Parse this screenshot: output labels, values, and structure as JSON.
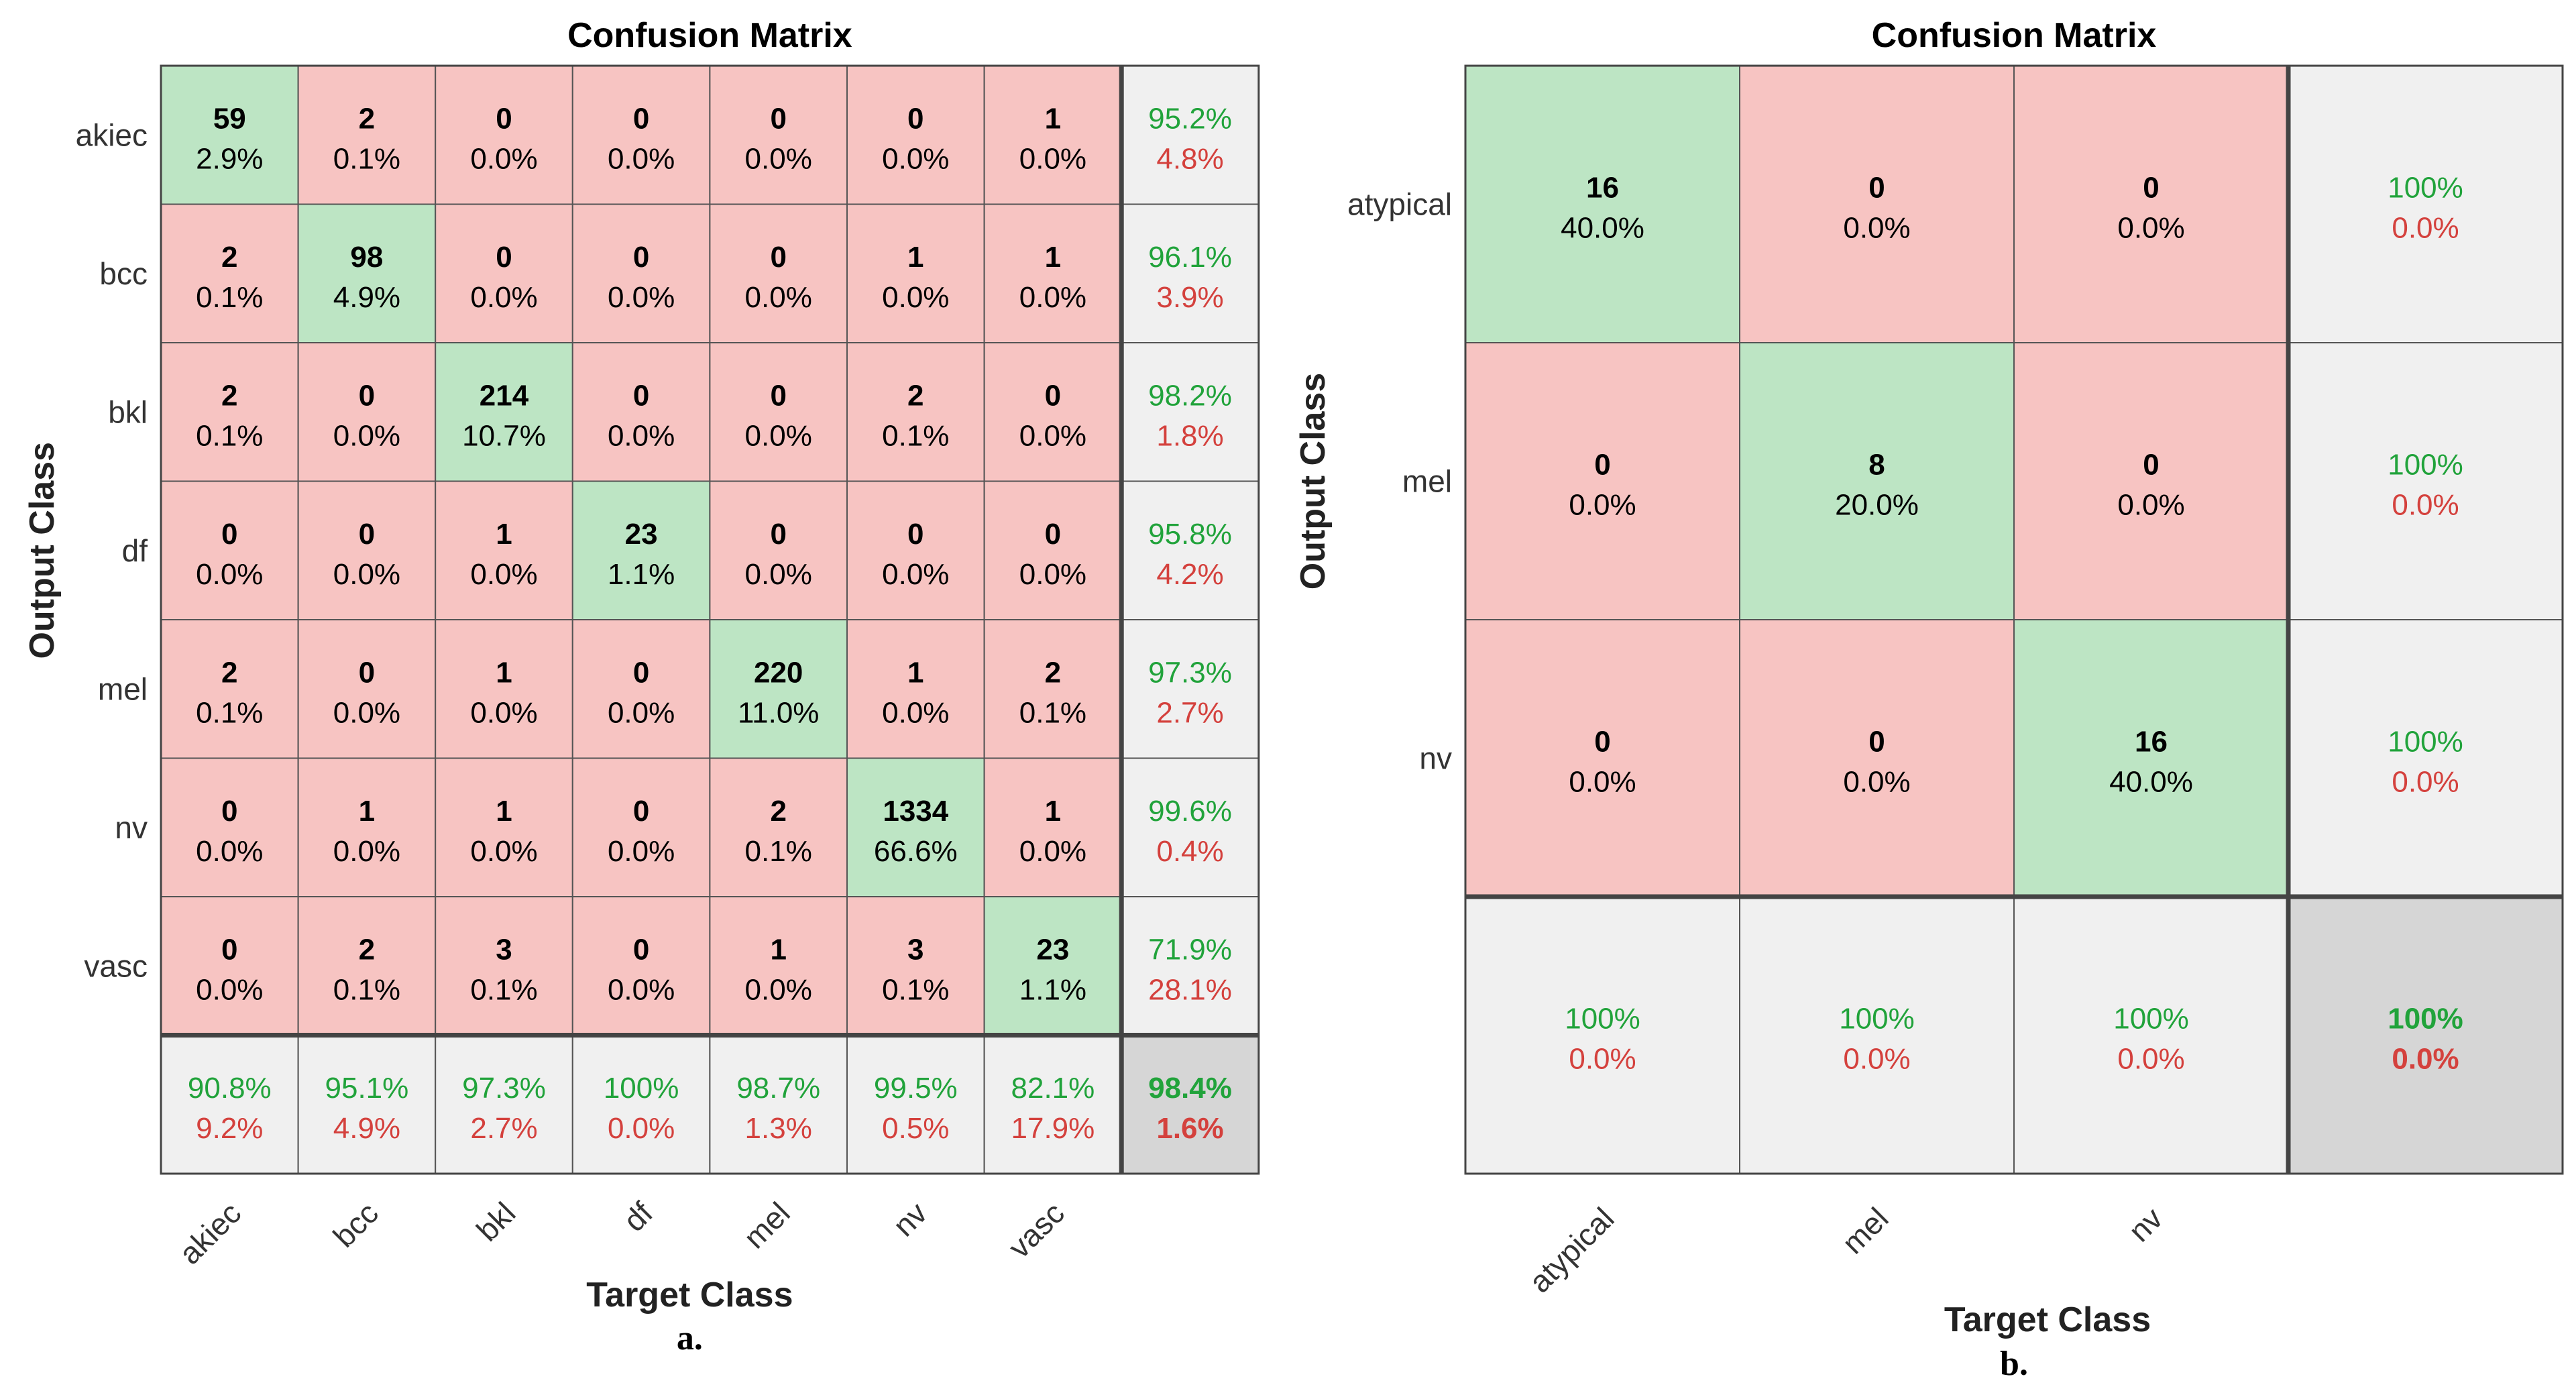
{
  "chart_data": [
    {
      "type": "heatmap",
      "title": "Confusion Matrix",
      "xlabel": "Target Class",
      "ylabel": "Output Class",
      "caption": "a.",
      "classes": [
        "akiec",
        "bcc",
        "bkl",
        "df",
        "mel",
        "nv",
        "vasc"
      ],
      "matrix": [
        [
          59,
          2,
          0,
          0,
          0,
          0,
          1
        ],
        [
          2,
          98,
          0,
          0,
          0,
          1,
          1
        ],
        [
          2,
          0,
          214,
          0,
          0,
          2,
          0
        ],
        [
          0,
          0,
          1,
          23,
          0,
          0,
          0
        ],
        [
          2,
          0,
          1,
          0,
          220,
          1,
          2
        ],
        [
          0,
          1,
          1,
          0,
          2,
          1334,
          1
        ],
        [
          0,
          2,
          3,
          0,
          1,
          3,
          23
        ]
      ],
      "cell_percent": [
        [
          "2.9%",
          "0.1%",
          "0.0%",
          "0.0%",
          "0.0%",
          "0.0%",
          "0.0%"
        ],
        [
          "0.1%",
          "4.9%",
          "0.0%",
          "0.0%",
          "0.0%",
          "0.0%",
          "0.0%"
        ],
        [
          "0.1%",
          "0.0%",
          "10.7%",
          "0.0%",
          "0.0%",
          "0.1%",
          "0.0%"
        ],
        [
          "0.0%",
          "0.0%",
          "0.0%",
          "1.1%",
          "0.0%",
          "0.0%",
          "0.0%"
        ],
        [
          "0.1%",
          "0.0%",
          "0.0%",
          "0.0%",
          "11.0%",
          "0.0%",
          "0.1%"
        ],
        [
          "0.0%",
          "0.0%",
          "0.0%",
          "0.0%",
          "0.1%",
          "66.6%",
          "0.0%"
        ],
        [
          "0.0%",
          "0.1%",
          "0.1%",
          "0.0%",
          "0.0%",
          "0.1%",
          "1.1%"
        ]
      ],
      "row_summary": [
        [
          "95.2%",
          "4.8%"
        ],
        [
          "96.1%",
          "3.9%"
        ],
        [
          "98.2%",
          "1.8%"
        ],
        [
          "95.8%",
          "4.2%"
        ],
        [
          "97.3%",
          "2.7%"
        ],
        [
          "99.6%",
          "0.4%"
        ],
        [
          "71.9%",
          "28.1%"
        ]
      ],
      "col_summary": [
        [
          "90.8%",
          "9.2%"
        ],
        [
          "95.1%",
          "4.9%"
        ],
        [
          "97.3%",
          "2.7%"
        ],
        [
          "100%",
          "0.0%"
        ],
        [
          "98.7%",
          "1.3%"
        ],
        [
          "99.5%",
          "0.5%"
        ],
        [
          "82.1%",
          "17.9%"
        ]
      ],
      "overall": [
        "98.4%",
        "1.6%"
      ]
    },
    {
      "type": "heatmap",
      "title": "Confusion Matrix",
      "xlabel": "Target Class",
      "ylabel": "Output Class",
      "caption": "b.",
      "classes": [
        "atypical",
        "mel",
        "nv"
      ],
      "matrix": [
        [
          16,
          0,
          0
        ],
        [
          0,
          8,
          0
        ],
        [
          0,
          0,
          16
        ]
      ],
      "cell_percent": [
        [
          "40.0%",
          "0.0%",
          "0.0%"
        ],
        [
          "0.0%",
          "20.0%",
          "0.0%"
        ],
        [
          "0.0%",
          "0.0%",
          "40.0%"
        ]
      ],
      "row_summary": [
        [
          "100%",
          "0.0%"
        ],
        [
          "100%",
          "0.0%"
        ],
        [
          "100%",
          "0.0%"
        ]
      ],
      "col_summary": [
        [
          "100%",
          "0.0%"
        ],
        [
          "100%",
          "0.0%"
        ],
        [
          "100%",
          "0.0%"
        ]
      ],
      "overall": [
        "100%",
        "0.0%"
      ]
    }
  ],
  "colors": {
    "diagonal": "#bde5c4",
    "offdiagonal": "#f7c4c2",
    "summary": "#f0f0f0",
    "overall": "#d6d6d6",
    "grid": "#555555",
    "green_text": "#21a33b",
    "red_text": "#d4413d"
  }
}
